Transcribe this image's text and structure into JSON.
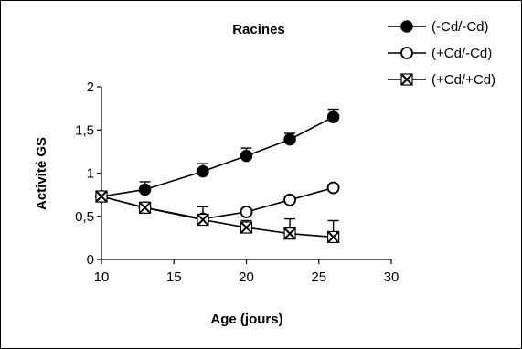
{
  "chart_data": {
    "type": "line",
    "title": "Racines",
    "xlabel": "Age (jours)",
    "ylabel": "Activité GS",
    "xlim": [
      10,
      30
    ],
    "ylim": [
      0,
      2
    ],
    "x_ticks": [
      10,
      15,
      20,
      25,
      30
    ],
    "x_tick_labels": [
      "10",
      "15",
      "20",
      "25",
      "30"
    ],
    "y_ticks": [
      0,
      0.5,
      1,
      1.5,
      2
    ],
    "y_tick_labels": [
      "0",
      "0,5",
      "1",
      "1,5",
      "2"
    ],
    "grid": false,
    "legend_position": "top-right",
    "series": [
      {
        "name": "(-Cd/-Cd)",
        "marker": "filled-circle",
        "x": [
          10,
          13,
          17,
          20,
          23,
          26
        ],
        "y": [
          0.73,
          0.81,
          1.02,
          1.2,
          1.39,
          1.65
        ],
        "error_up": [
          0,
          0.09,
          0.09,
          0.09,
          0.07,
          0.09
        ]
      },
      {
        "name": "(+Cd/-Cd)",
        "marker": "open-circle",
        "x": [
          10,
          13,
          17,
          20,
          23,
          26
        ],
        "y": [
          0.73,
          0.6,
          0.47,
          0.55,
          0.69,
          0.83
        ],
        "error_up": [
          0,
          0.05,
          0.05,
          0.04,
          0.04,
          0.04
        ]
      },
      {
        "name": "(+Cd/+Cd)",
        "marker": "cross-box",
        "x": [
          10,
          13,
          17,
          20,
          23,
          26
        ],
        "y": [
          0.73,
          0.6,
          0.46,
          0.37,
          0.3,
          0.26
        ],
        "error_up": [
          0,
          0.06,
          0.15,
          0.08,
          0.17,
          0.19
        ]
      }
    ],
    "colors": {
      "line": "#000000",
      "background": "#ffffff"
    }
  }
}
